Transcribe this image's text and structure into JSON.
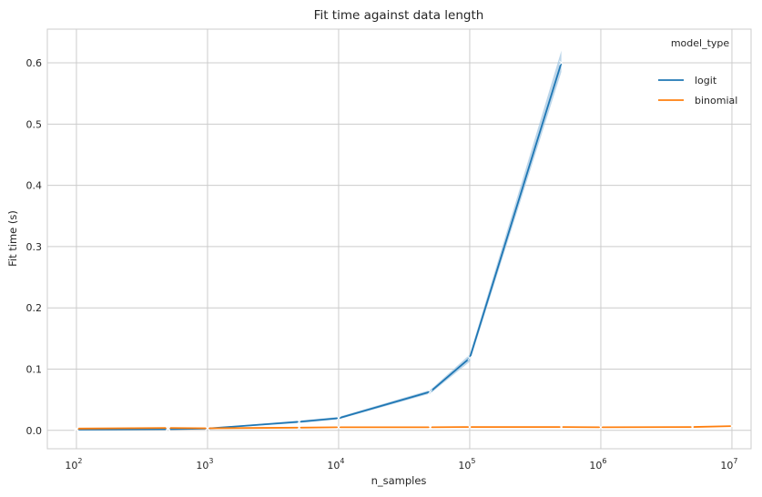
{
  "chart_data": {
    "type": "line",
    "title": "Fit time against data length",
    "xlabel": "n_samples",
    "ylabel": "Fit time (s)",
    "xscale": "log",
    "xlim": [
      60,
      14000000
    ],
    "ylim": [
      -0.03,
      0.655
    ],
    "xticks": [
      {
        "base": "10",
        "exp": "2",
        "value": 100
      },
      {
        "base": "10",
        "exp": "3",
        "value": 1000
      },
      {
        "base": "10",
        "exp": "4",
        "value": 10000
      },
      {
        "base": "10",
        "exp": "5",
        "value": 100000
      },
      {
        "base": "10",
        "exp": "6",
        "value": 1000000
      },
      {
        "base": "10",
        "exp": "7",
        "value": 10000000
      }
    ],
    "yticks": [
      {
        "label": "0.0",
        "value": 0.0
      },
      {
        "label": "0.1",
        "value": 0.1
      },
      {
        "label": "0.2",
        "value": 0.2
      },
      {
        "label": "0.3",
        "value": 0.3
      },
      {
        "label": "0.4",
        "value": 0.4
      },
      {
        "label": "0.5",
        "value": 0.5
      },
      {
        "label": "0.6",
        "value": 0.6
      }
    ],
    "grid": true,
    "legend_title": "model_type",
    "legend_position": "top-right",
    "series": [
      {
        "name": "logit",
        "color": "#1f77b4",
        "band_color": "#a6c8e3",
        "x": [
          100,
          500,
          1000,
          5000,
          10000,
          50000,
          100000,
          500000
        ],
        "y": [
          0.0015,
          0.002,
          0.003,
          0.014,
          0.02,
          0.063,
          0.118,
          0.6
        ],
        "y_lower": [
          0.0012,
          0.0016,
          0.0025,
          0.012,
          0.018,
          0.06,
          0.112,
          0.585
        ],
        "y_upper": [
          0.0018,
          0.0024,
          0.0035,
          0.016,
          0.022,
          0.066,
          0.124,
          0.62
        ]
      },
      {
        "name": "binomial",
        "color": "#ff7f0e",
        "band_color": "#ffc690",
        "x": [
          100,
          500,
          1000,
          5000,
          10000,
          50000,
          100000,
          500000,
          1000000,
          5000000,
          10000000
        ],
        "y": [
          0.003,
          0.004,
          0.0035,
          0.0045,
          0.005,
          0.005,
          0.0055,
          0.0055,
          0.005,
          0.0055,
          0.007
        ],
        "y_lower": [
          0.0025,
          0.0035,
          0.003,
          0.004,
          0.0045,
          0.0045,
          0.005,
          0.005,
          0.0045,
          0.005,
          0.0065
        ],
        "y_upper": [
          0.0035,
          0.0045,
          0.004,
          0.005,
          0.0055,
          0.0055,
          0.006,
          0.006,
          0.0055,
          0.006,
          0.0075
        ]
      }
    ]
  }
}
